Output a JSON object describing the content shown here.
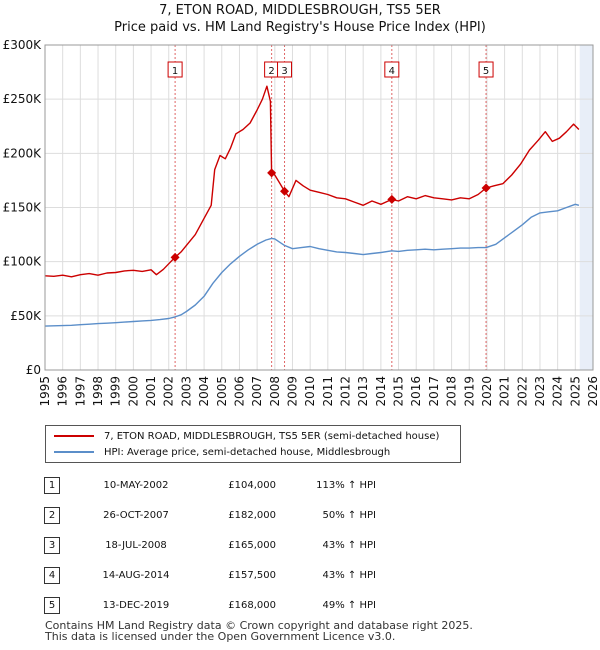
{
  "title": {
    "line1": "7, ETON ROAD, MIDDLESBROUGH, TS5 5ER",
    "line2": "Price paid vs. HM Land Registry's House Price Index (HPI)"
  },
  "colors": {
    "property": "#cc0000",
    "hpi": "#5b8ec9",
    "sale_line": "#e06666",
    "future_shade": "#e8eef8",
    "grid": "#dddddd"
  },
  "chart_data": {
    "type": "line",
    "title": "7, ETON ROAD, MIDDLESBROUGH, TS5 5ER — Price paid vs. HM Land Registry's House Price Index (HPI)",
    "xlabel": "",
    "ylabel": "",
    "xlim": [
      1995,
      2026
    ],
    "ylim": [
      0,
      300000
    ],
    "grid": true,
    "y_ticks": [
      {
        "value": 0,
        "label": "£0"
      },
      {
        "value": 50000,
        "label": "£50K"
      },
      {
        "value": 100000,
        "label": "£100K"
      },
      {
        "value": 150000,
        "label": "£150K"
      },
      {
        "value": 200000,
        "label": "£200K"
      },
      {
        "value": 250000,
        "label": "£250K"
      },
      {
        "value": 300000,
        "label": "£300K"
      }
    ],
    "x_ticks": [
      "1995",
      "1996",
      "1997",
      "1998",
      "1999",
      "2000",
      "2001",
      "2002",
      "2003",
      "2004",
      "2005",
      "2006",
      "2007",
      "2008",
      "2009",
      "2010",
      "2011",
      "2012",
      "2013",
      "2014",
      "2015",
      "2016",
      "2017",
      "2018",
      "2019",
      "2020",
      "2021",
      "2022",
      "2023",
      "2024",
      "2025",
      "2026"
    ],
    "future_from": 2025.25,
    "series": [
      {
        "name": "7, ETON ROAD, MIDDLESBROUGH, TS5 5ER (semi-detached house)",
        "points": [
          [
            1995.0,
            87000
          ],
          [
            1995.5,
            86500
          ],
          [
            1996.0,
            87500
          ],
          [
            1996.5,
            86000
          ],
          [
            1997.0,
            88000
          ],
          [
            1997.5,
            89000
          ],
          [
            1998.0,
            87500
          ],
          [
            1998.5,
            89500
          ],
          [
            1999.0,
            90000
          ],
          [
            1999.5,
            91500
          ],
          [
            2000.0,
            92000
          ],
          [
            2000.5,
            91000
          ],
          [
            2001.0,
            92500
          ],
          [
            2001.3,
            88000
          ],
          [
            2001.7,
            93000
          ],
          [
            2002.0,
            98000
          ],
          [
            2002.36,
            104000
          ],
          [
            2002.7,
            109000
          ],
          [
            2003.0,
            115000
          ],
          [
            2003.5,
            125000
          ],
          [
            2004.0,
            140000
          ],
          [
            2004.4,
            152000
          ],
          [
            2004.6,
            185000
          ],
          [
            2004.9,
            198000
          ],
          [
            2005.2,
            195000
          ],
          [
            2005.5,
            205000
          ],
          [
            2005.8,
            218000
          ],
          [
            2006.2,
            222000
          ],
          [
            2006.6,
            228000
          ],
          [
            2007.0,
            240000
          ],
          [
            2007.3,
            250000
          ],
          [
            2007.55,
            262000
          ],
          [
            2007.75,
            248000
          ],
          [
            2007.82,
            182000
          ],
          [
            2008.0,
            180000
          ],
          [
            2008.3,
            172000
          ],
          [
            2008.55,
            165000
          ],
          [
            2008.8,
            160000
          ],
          [
            2009.2,
            175000
          ],
          [
            2009.6,
            170000
          ],
          [
            2010.0,
            166000
          ],
          [
            2010.5,
            164000
          ],
          [
            2011.0,
            162000
          ],
          [
            2011.5,
            159000
          ],
          [
            2012.0,
            158000
          ],
          [
            2012.5,
            155000
          ],
          [
            2013.0,
            152000
          ],
          [
            2013.5,
            156000
          ],
          [
            2014.0,
            153000
          ],
          [
            2014.62,
            157500
          ],
          [
            2015.0,
            156000
          ],
          [
            2015.5,
            160000
          ],
          [
            2016.0,
            158000
          ],
          [
            2016.5,
            161000
          ],
          [
            2017.0,
            159000
          ],
          [
            2017.5,
            158000
          ],
          [
            2018.0,
            157000
          ],
          [
            2018.5,
            159000
          ],
          [
            2019.0,
            158000
          ],
          [
            2019.5,
            162000
          ],
          [
            2019.95,
            168000
          ],
          [
            2020.4,
            170000
          ],
          [
            2020.9,
            172000
          ],
          [
            2021.4,
            180000
          ],
          [
            2021.9,
            190000
          ],
          [
            2022.4,
            203000
          ],
          [
            2022.9,
            212000
          ],
          [
            2023.3,
            220000
          ],
          [
            2023.7,
            211000
          ],
          [
            2024.1,
            214000
          ],
          [
            2024.5,
            220000
          ],
          [
            2024.9,
            227000
          ],
          [
            2025.2,
            222000
          ]
        ]
      },
      {
        "name": "HPI: Average price, semi-detached house, Middlesbrough",
        "points": [
          [
            1995.0,
            40500
          ],
          [
            1995.5,
            40800
          ],
          [
            1996.0,
            41000
          ],
          [
            1996.5,
            41300
          ],
          [
            1997.0,
            41800
          ],
          [
            1997.5,
            42300
          ],
          [
            1998.0,
            42800
          ],
          [
            1998.5,
            43200
          ],
          [
            1999.0,
            43700
          ],
          [
            1999.5,
            44200
          ],
          [
            2000.0,
            44800
          ],
          [
            2000.5,
            45300
          ],
          [
            2001.0,
            45800
          ],
          [
            2001.5,
            46500
          ],
          [
            2002.0,
            47500
          ],
          [
            2002.36,
            49000
          ],
          [
            2002.7,
            51000
          ],
          [
            2003.0,
            54000
          ],
          [
            2003.5,
            60000
          ],
          [
            2004.0,
            68000
          ],
          [
            2004.5,
            80000
          ],
          [
            2005.0,
            90000
          ],
          [
            2005.5,
            98000
          ],
          [
            2006.0,
            105000
          ],
          [
            2006.5,
            111000
          ],
          [
            2007.0,
            116000
          ],
          [
            2007.5,
            120000
          ],
          [
            2007.82,
            121500
          ],
          [
            2008.0,
            121000
          ],
          [
            2008.55,
            115000
          ],
          [
            2009.0,
            112000
          ],
          [
            2009.5,
            113000
          ],
          [
            2010.0,
            114000
          ],
          [
            2010.5,
            112000
          ],
          [
            2011.0,
            110500
          ],
          [
            2011.5,
            109000
          ],
          [
            2012.0,
            108500
          ],
          [
            2012.5,
            107500
          ],
          [
            2013.0,
            106500
          ],
          [
            2013.5,
            107500
          ],
          [
            2014.0,
            108500
          ],
          [
            2014.62,
            110000
          ],
          [
            2015.0,
            109500
          ],
          [
            2015.5,
            110500
          ],
          [
            2016.0,
            111000
          ],
          [
            2016.5,
            111500
          ],
          [
            2017.0,
            111000
          ],
          [
            2017.5,
            111500
          ],
          [
            2018.0,
            112000
          ],
          [
            2018.5,
            112500
          ],
          [
            2019.0,
            112500
          ],
          [
            2019.5,
            113000
          ],
          [
            2019.95,
            113000
          ],
          [
            2020.5,
            116000
          ],
          [
            2021.0,
            122000
          ],
          [
            2021.5,
            128000
          ],
          [
            2022.0,
            134000
          ],
          [
            2022.5,
            141000
          ],
          [
            2023.0,
            145000
          ],
          [
            2023.5,
            146000
          ],
          [
            2024.0,
            147000
          ],
          [
            2024.5,
            150000
          ],
          [
            2025.0,
            153000
          ],
          [
            2025.2,
            152000
          ]
        ]
      }
    ],
    "sales": [
      {
        "num": "1",
        "x": 2002.36,
        "y": 104000
      },
      {
        "num": "2",
        "x": 2007.82,
        "y": 182000
      },
      {
        "num": "3",
        "x": 2008.55,
        "y": 165000
      },
      {
        "num": "4",
        "x": 2014.62,
        "y": 157500
      },
      {
        "num": "5",
        "x": 2019.95,
        "y": 168000
      }
    ]
  },
  "legend": {
    "property": "7, ETON ROAD, MIDDLESBROUGH, TS5 5ER (semi-detached house)",
    "hpi": "HPI: Average price, semi-detached house, Middlesbrough"
  },
  "transactions": [
    {
      "num": "1",
      "date": "10-MAY-2002",
      "price": "£104,000",
      "hpi": "113% ↑ HPI"
    },
    {
      "num": "2",
      "date": "26-OCT-2007",
      "price": "£182,000",
      "hpi": "50% ↑ HPI"
    },
    {
      "num": "3",
      "date": "18-JUL-2008",
      "price": "£165,000",
      "hpi": "43% ↑ HPI"
    },
    {
      "num": "4",
      "date": "14-AUG-2014",
      "price": "£157,500",
      "hpi": "43% ↑ HPI"
    },
    {
      "num": "5",
      "date": "13-DEC-2019",
      "price": "£168,000",
      "hpi": "49% ↑ HPI"
    }
  ],
  "footer": {
    "line1": "Contains HM Land Registry data © Crown copyright and database right 2025.",
    "line2": "This data is licensed under the Open Government Licence v3.0."
  }
}
